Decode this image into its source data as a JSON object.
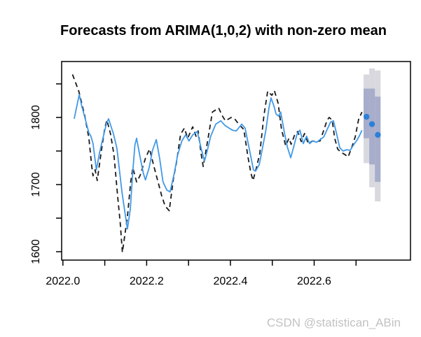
{
  "title": "Forecasts from ARIMA(1,0,2) with non-zero mean",
  "watermark": "CSDN @statistican_ABin",
  "chart_data": {
    "type": "line",
    "title": "Forecasts from ARIMA(1,0,2) with non-zero mean",
    "xlabel": "",
    "ylabel": "",
    "xlim": [
      2021.997,
      2022.83
    ],
    "ylim": [
      1587.5,
      1883.3
    ],
    "grid": false,
    "legend": "none",
    "x_ticks": [
      2022.0,
      2022.1,
      2022.2,
      2022.3,
      2022.4,
      2022.5,
      2022.6,
      2022.7
    ],
    "x_labeled_ticks": [
      {
        "v": 2022.0,
        "label": "2022.0"
      },
      {
        "v": 2022.2,
        "label": "2022.2"
      },
      {
        "v": 2022.4,
        "label": "2022.4"
      },
      {
        "v": 2022.6,
        "label": "2022.6"
      }
    ],
    "y_ticks": [
      1600,
      1650,
      1700,
      1750,
      1800,
      1850
    ],
    "y_labeled_ticks": [
      {
        "v": 1600,
        "label": "1600"
      },
      {
        "v": 1700,
        "label": "1700"
      },
      {
        "v": 1800,
        "label": "1800"
      }
    ],
    "colors": {
      "observed": "#1a1a1a",
      "fitted": "#4199e8",
      "forecast_point": "#2b80d9",
      "band80": "#a7adca",
      "band95": "#d8d8df",
      "axis": "#000000"
    },
    "series": [
      {
        "name": "observed",
        "style": "dashed",
        "points": [
          [
            2022.023,
            1864
          ],
          [
            2022.038,
            1839
          ],
          [
            2022.052,
            1803
          ],
          [
            2022.062,
            1769
          ],
          [
            2022.069,
            1727
          ],
          [
            2022.072,
            1713
          ],
          [
            2022.077,
            1722
          ],
          [
            2022.082,
            1706
          ],
          [
            2022.092,
            1751
          ],
          [
            2022.1,
            1784
          ],
          [
            2022.105,
            1796
          ],
          [
            2022.114,
            1775
          ],
          [
            2022.122,
            1744
          ],
          [
            2022.131,
            1681
          ],
          [
            2022.137,
            1642
          ],
          [
            2022.142,
            1599
          ],
          [
            2022.154,
            1652
          ],
          [
            2022.162,
            1704
          ],
          [
            2022.167,
            1725
          ],
          [
            2022.176,
            1704
          ],
          [
            2022.184,
            1713
          ],
          [
            2022.197,
            1739
          ],
          [
            2022.207,
            1753
          ],
          [
            2022.217,
            1728
          ],
          [
            2022.228,
            1702
          ],
          [
            2022.236,
            1683
          ],
          [
            2022.244,
            1668
          ],
          [
            2022.254,
            1661
          ],
          [
            2022.264,
            1709
          ],
          [
            2022.271,
            1732
          ],
          [
            2022.281,
            1775
          ],
          [
            2022.29,
            1784
          ],
          [
            2022.298,
            1769
          ],
          [
            2022.31,
            1786
          ],
          [
            2022.318,
            1772
          ],
          [
            2022.323,
            1780
          ],
          [
            2022.33,
            1746
          ],
          [
            2022.335,
            1727
          ],
          [
            2022.347,
            1770
          ],
          [
            2022.357,
            1808
          ],
          [
            2022.372,
            1814
          ],
          [
            2022.38,
            1803
          ],
          [
            2022.388,
            1795
          ],
          [
            2022.402,
            1800
          ],
          [
            2022.41,
            1798
          ],
          [
            2022.42,
            1790
          ],
          [
            2022.432,
            1782
          ],
          [
            2022.442,
            1741
          ],
          [
            2022.449,
            1717
          ],
          [
            2022.454,
            1706
          ],
          [
            2022.462,
            1725
          ],
          [
            2022.47,
            1746
          ],
          [
            2022.48,
            1803
          ],
          [
            2022.489,
            1839
          ],
          [
            2022.499,
            1833
          ],
          [
            2022.505,
            1840
          ],
          [
            2022.514,
            1821
          ],
          [
            2022.522,
            1782
          ],
          [
            2022.532,
            1758
          ],
          [
            2022.54,
            1769
          ],
          [
            2022.545,
            1760
          ],
          [
            2022.554,
            1775
          ],
          [
            2022.561,
            1779
          ],
          [
            2022.569,
            1764
          ],
          [
            2022.577,
            1776
          ],
          [
            2022.586,
            1761
          ],
          [
            2022.596,
            1765
          ],
          [
            2022.606,
            1764
          ],
          [
            2022.614,
            1765
          ],
          [
            2022.623,
            1781
          ],
          [
            2022.631,
            1796
          ],
          [
            2022.636,
            1800
          ],
          [
            2022.643,
            1796
          ],
          [
            2022.649,
            1769
          ],
          [
            2022.656,
            1753
          ],
          [
            2022.664,
            1748
          ],
          [
            2022.673,
            1745
          ],
          [
            2022.681,
            1741
          ],
          [
            2022.689,
            1754
          ],
          [
            2022.698,
            1771
          ],
          [
            2022.706,
            1797
          ],
          [
            2022.714,
            1808
          ]
        ]
      },
      {
        "name": "fitted",
        "style": "solid",
        "points": [
          [
            2022.027,
            1798
          ],
          [
            2022.034,
            1819
          ],
          [
            2022.039,
            1834
          ],
          [
            2022.045,
            1817
          ],
          [
            2022.054,
            1796
          ],
          [
            2022.062,
            1777
          ],
          [
            2022.067,
            1772
          ],
          [
            2022.072,
            1761
          ],
          [
            2022.08,
            1722
          ],
          [
            2022.087,
            1746
          ],
          [
            2022.094,
            1765
          ],
          [
            2022.104,
            1791
          ],
          [
            2022.109,
            1798
          ],
          [
            2022.121,
            1775
          ],
          [
            2022.129,
            1754
          ],
          [
            2022.134,
            1727
          ],
          [
            2022.141,
            1689
          ],
          [
            2022.147,
            1663
          ],
          [
            2022.154,
            1634
          ],
          [
            2022.161,
            1663
          ],
          [
            2022.167,
            1720
          ],
          [
            2022.172,
            1759
          ],
          [
            2022.176,
            1769
          ],
          [
            2022.184,
            1742
          ],
          [
            2022.192,
            1717
          ],
          [
            2022.197,
            1707
          ],
          [
            2022.206,
            1725
          ],
          [
            2022.214,
            1751
          ],
          [
            2022.223,
            1767
          ],
          [
            2022.231,
            1739
          ],
          [
            2022.239,
            1704
          ],
          [
            2022.248,
            1692
          ],
          [
            2022.256,
            1689
          ],
          [
            2022.266,
            1717
          ],
          [
            2022.274,
            1744
          ],
          [
            2022.284,
            1765
          ],
          [
            2022.293,
            1774
          ],
          [
            2022.301,
            1765
          ],
          [
            2022.31,
            1774
          ],
          [
            2022.321,
            1779
          ],
          [
            2022.33,
            1754
          ],
          [
            2022.338,
            1735
          ],
          [
            2022.345,
            1751
          ],
          [
            2022.353,
            1772
          ],
          [
            2022.365,
            1790
          ],
          [
            2022.377,
            1795
          ],
          [
            2022.387,
            1788
          ],
          [
            2022.397,
            1784
          ],
          [
            2022.405,
            1781
          ],
          [
            2022.414,
            1780
          ],
          [
            2022.427,
            1790
          ],
          [
            2022.435,
            1784
          ],
          [
            2022.44,
            1769
          ],
          [
            2022.449,
            1741
          ],
          [
            2022.455,
            1722
          ],
          [
            2022.46,
            1720
          ],
          [
            2022.469,
            1730
          ],
          [
            2022.477,
            1756
          ],
          [
            2022.485,
            1782
          ],
          [
            2022.492,
            1814
          ],
          [
            2022.497,
            1829
          ],
          [
            2022.504,
            1817
          ],
          [
            2022.509,
            1805
          ],
          [
            2022.515,
            1802
          ],
          [
            2022.52,
            1808
          ],
          [
            2022.529,
            1777
          ],
          [
            2022.536,
            1756
          ],
          [
            2022.544,
            1740
          ],
          [
            2022.551,
            1756
          ],
          [
            2022.559,
            1775
          ],
          [
            2022.566,
            1781
          ],
          [
            2022.574,
            1761
          ],
          [
            2022.582,
            1772
          ],
          [
            2022.589,
            1761
          ],
          [
            2022.597,
            1765
          ],
          [
            2022.606,
            1763
          ],
          [
            2022.614,
            1767
          ],
          [
            2022.623,
            1771
          ],
          [
            2022.631,
            1782
          ],
          [
            2022.639,
            1793
          ],
          [
            2022.646,
            1795
          ],
          [
            2022.653,
            1777
          ],
          [
            2022.661,
            1755
          ],
          [
            2022.669,
            1750
          ],
          [
            2022.678,
            1752
          ],
          [
            2022.686,
            1751
          ],
          [
            2022.694,
            1759
          ],
          [
            2022.703,
            1767
          ],
          [
            2022.709,
            1774
          ],
          [
            2022.714,
            1781
          ]
        ]
      }
    ],
    "forecast": {
      "points": [
        {
          "t": 2022.725,
          "mean": 1801
        },
        {
          "t": 2022.738,
          "mean": 1790
        },
        {
          "t": 2022.752,
          "mean": 1774
        }
      ],
      "intervals": [
        {
          "t0": 2022.718,
          "t1": 2022.7315,
          "hi95": 1864,
          "lo95": 1732,
          "hi80": 1843,
          "lo80": 1769
        },
        {
          "t0": 2022.7315,
          "t1": 2022.745,
          "hi95": 1873,
          "lo95": 1696,
          "hi80": 1843,
          "lo80": 1730
        },
        {
          "t0": 2022.745,
          "t1": 2022.7585,
          "hi95": 1870,
          "lo95": 1675,
          "hi80": 1831,
          "lo80": 1704
        }
      ]
    }
  }
}
